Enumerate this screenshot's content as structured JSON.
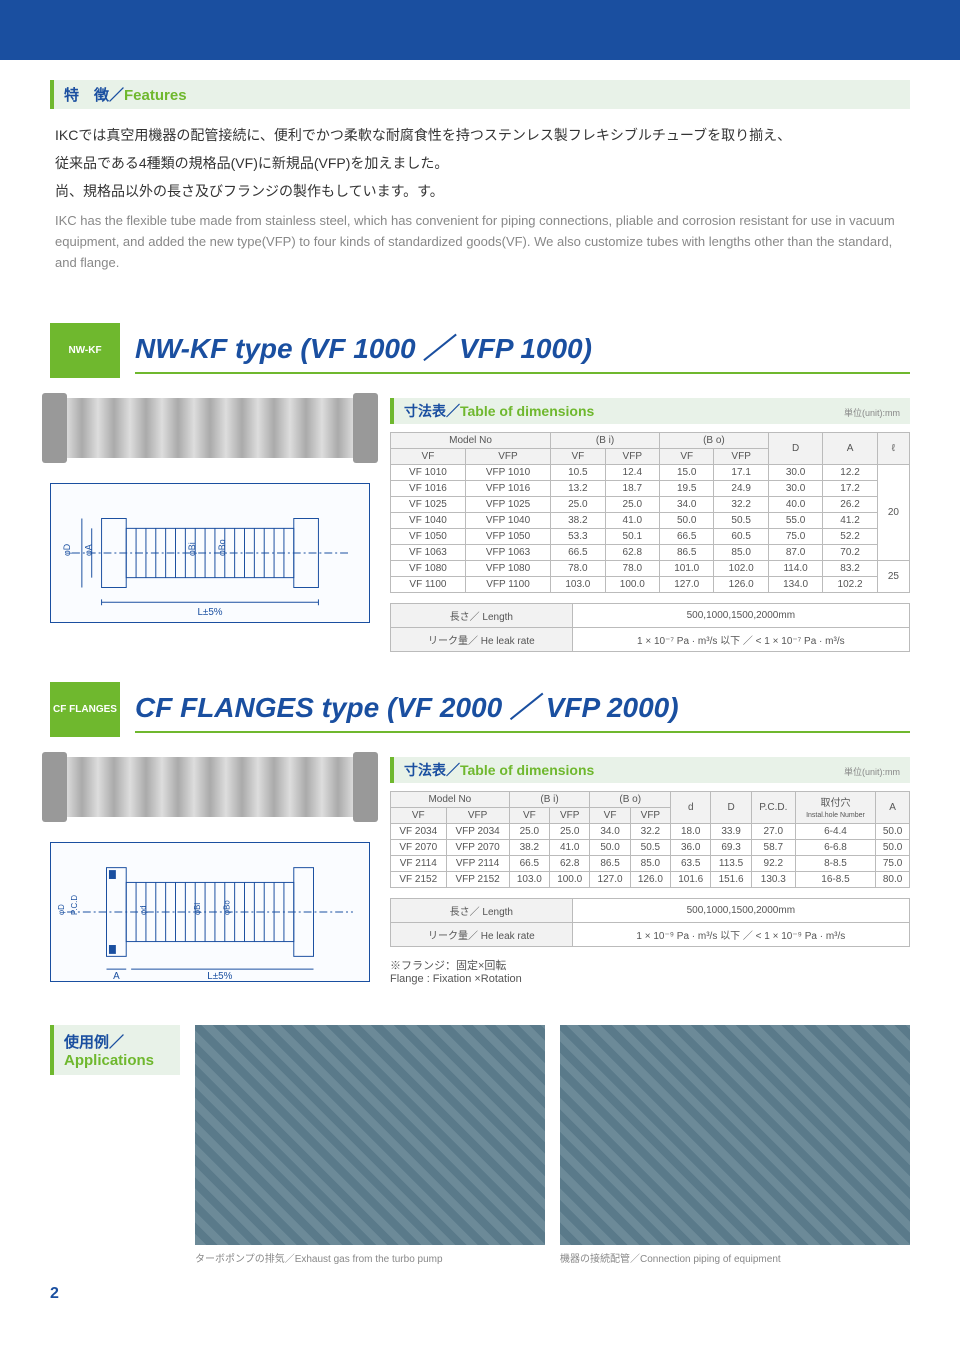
{
  "features": {
    "title_jp": "特　徴／",
    "title_en": "Features",
    "body_jp1": "IKCでは真空用機器の配管接続に、便利でかつ柔軟な耐腐食性を持つステンレス製フレキシブルチューブを取り揃え、",
    "body_jp2": "従来品である4種類の規格品(VF)に新規品(VFP)を加えました。",
    "body_jp3": "尚、規格品以外の長さ及びフランジの製作もしています。す。",
    "body_en": "IKC has the flexible tube made from stainless steel, which has convenient for piping connections, pliable and corrosion resistant for use in vacuum equipment, and added the new type(VFP) to four kinds of standardized goods(VF). We also customize tubes with lengths other than the standard, and flange."
  },
  "nwkf": {
    "badge": "NW-KF",
    "title": "NW-KF type (VF 1000 ／ VFP 1000)",
    "table_title_jp": "寸法表／",
    "table_title_en": "Table of dimensions",
    "unit": "単位(unit):mm",
    "headers": {
      "model": "Model No",
      "bi": "(B i)",
      "bo": "(B o)",
      "d": "D",
      "a": "A",
      "l": "ℓ",
      "vf": "VF",
      "vfp": "VFP"
    },
    "rows": [
      {
        "vf": "VF 1010",
        "vfp": "VFP 1010",
        "bivf": "10.5",
        "bivfp": "12.4",
        "bovf": "15.0",
        "bovfp": "17.1",
        "d": "30.0",
        "a": "12.2",
        "l": "20"
      },
      {
        "vf": "VF 1016",
        "vfp": "VFP 1016",
        "bivf": "13.2",
        "bivfp": "18.7",
        "bovf": "19.5",
        "bovfp": "24.9",
        "d": "30.0",
        "a": "17.2",
        "l": ""
      },
      {
        "vf": "VF 1025",
        "vfp": "VFP 1025",
        "bivf": "25.0",
        "bivfp": "25.0",
        "bovf": "34.0",
        "bovfp": "32.2",
        "d": "40.0",
        "a": "26.2",
        "l": ""
      },
      {
        "vf": "VF 1040",
        "vfp": "VFP 1040",
        "bivf": "38.2",
        "bivfp": "41.0",
        "bovf": "50.0",
        "bovfp": "50.5",
        "d": "55.0",
        "a": "41.2",
        "l": ""
      },
      {
        "vf": "VF 1050",
        "vfp": "VFP 1050",
        "bivf": "53.3",
        "bivfp": "50.1",
        "bovf": "66.5",
        "bovfp": "60.5",
        "d": "75.0",
        "a": "52.2",
        "l": ""
      },
      {
        "vf": "VF 1063",
        "vfp": "VFP 1063",
        "bivf": "66.5",
        "bivfp": "62.8",
        "bovf": "86.5",
        "bovfp": "85.0",
        "d": "87.0",
        "a": "70.2",
        "l": ""
      },
      {
        "vf": "VF 1080",
        "vfp": "VFP 1080",
        "bivf": "78.0",
        "bivfp": "78.0",
        "bovf": "101.0",
        "bovfp": "102.0",
        "d": "114.0",
        "a": "83.2",
        "l": "25"
      },
      {
        "vf": "VF 1100",
        "vfp": "VFP 1100",
        "bivf": "103.0",
        "bivfp": "100.0",
        "bovf": "127.0",
        "bovfp": "126.0",
        "d": "134.0",
        "a": "102.2",
        "l": ""
      }
    ],
    "length_label": "長さ／ Length",
    "length_val": "500,1000,1500,2000mm",
    "leak_label": "リーク量／ He leak rate",
    "leak_val": "1 × 10⁻⁷ Pa · m³/s 以下 ／ < 1 × 10⁻⁷ Pa · m³/s",
    "diag_l": "L±5%"
  },
  "cf": {
    "badge": "CF FLANGES",
    "title": "CF FLANGES type (VF 2000 ／ VFP 2000)",
    "table_title_jp": "寸法表／",
    "table_title_en": "Table of dimensions",
    "unit": "単位(unit):mm",
    "headers": {
      "model": "Model No",
      "bi": "(B i)",
      "bo": "(B o)",
      "d": "d",
      "dd": "D",
      "pcd": "P.C.D.",
      "hole": "取付穴",
      "hole2": "Instal.hole Number",
      "a": "A",
      "vf": "VF",
      "vfp": "VFP"
    },
    "rows": [
      {
        "vf": "VF 2034",
        "vfp": "VFP 2034",
        "bivf": "25.0",
        "bivfp": "25.0",
        "bovf": "34.0",
        "bovfp": "32.2",
        "d": "18.0",
        "dd": "33.9",
        "pcd": "27.0",
        "hole": "6-4.4",
        "a": "50.0"
      },
      {
        "vf": "VF 2070",
        "vfp": "VFP 2070",
        "bivf": "38.2",
        "bivfp": "41.0",
        "bovf": "50.0",
        "bovfp": "50.5",
        "d": "36.0",
        "dd": "69.3",
        "pcd": "58.7",
        "hole": "6-6.8",
        "a": "50.0"
      },
      {
        "vf": "VF 2114",
        "vfp": "VFP 2114",
        "bivf": "66.5",
        "bivfp": "62.8",
        "bovf": "86.5",
        "bovfp": "85.0",
        "d": "63.5",
        "dd": "113.5",
        "pcd": "92.2",
        "hole": "8-8.5",
        "a": "75.0"
      },
      {
        "vf": "VF 2152",
        "vfp": "VFP 2152",
        "bivf": "103.0",
        "bivfp": "100.0",
        "bovf": "127.0",
        "bovfp": "126.0",
        "d": "101.6",
        "dd": "151.6",
        "pcd": "130.3",
        "hole": "16-8.5",
        "a": "80.0"
      }
    ],
    "length_label": "長さ／ Length",
    "length_val": "500,1000,1500,2000mm",
    "leak_label": "リーク量／ He leak rate",
    "leak_val": "1 × 10⁻⁹ Pa · m³/s 以下 ／ < 1 × 10⁻⁹ Pa · m³/s",
    "note": "※フランジ：固定×回転",
    "note_en": "Flange : Fixation ×Rotation",
    "diag_l": "L±5%",
    "diag_a": "A"
  },
  "apps": {
    "title_jp": "使用例／",
    "title_en": "Applications",
    "cap1": "ターボポンプの排気／Exhaust gas from the turbo pump",
    "cap2": "機器の接続配管／Connection piping of equipment"
  },
  "page_num": "2"
}
